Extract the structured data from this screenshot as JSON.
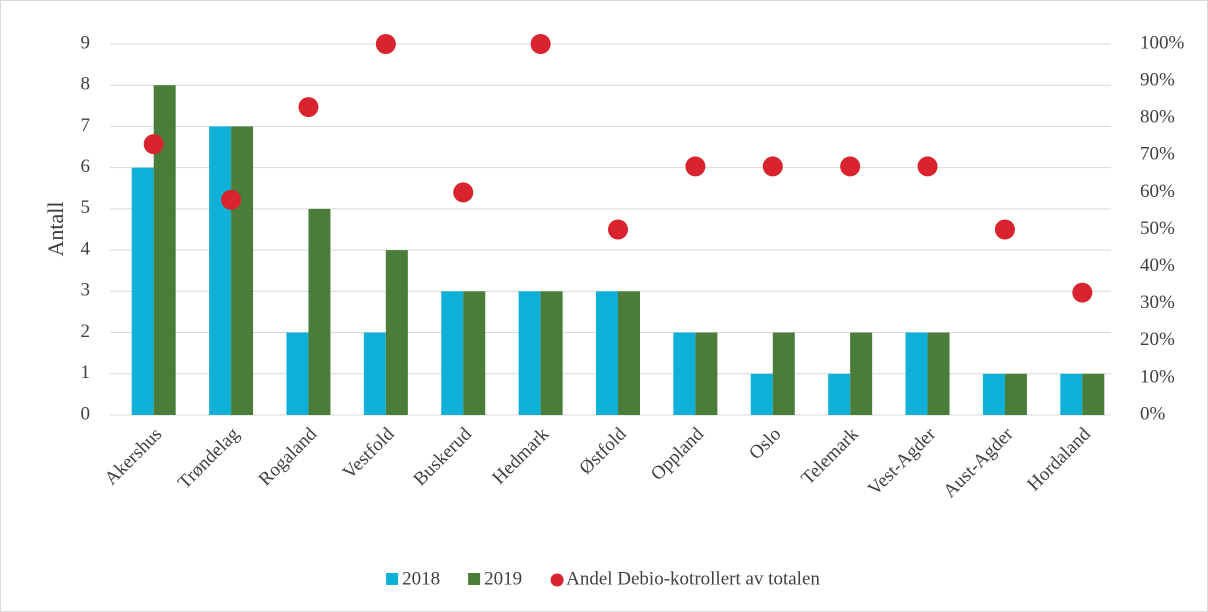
{
  "chart_data": {
    "type": "bar",
    "categories": [
      "Akershus",
      "Trøndelag",
      "Rogaland",
      "Vestfold",
      "Buskerud",
      "Hedmark",
      "Østfold",
      "Oppland",
      "Oslo",
      "Telemark",
      "Vest-Agder",
      "Aust-Agder",
      "Hordaland"
    ],
    "series": [
      {
        "name": "2018",
        "color": "#0eb0d7",
        "values": [
          6,
          7,
          2,
          2,
          3,
          3,
          3,
          2,
          1,
          1,
          2,
          1,
          1
        ]
      },
      {
        "name": "2019",
        "color": "#4a7c3a",
        "values": [
          8,
          7,
          5,
          4,
          3,
          3,
          3,
          2,
          2,
          2,
          2,
          1,
          1
        ]
      },
      {
        "name": "Andel Debio-kotrollert av totalen",
        "color": "#d9232e",
        "type": "scatter",
        "axis": "y2",
        "values": [
          73,
          58,
          83,
          100,
          60,
          100,
          50,
          67,
          67,
          67,
          67,
          50,
          33
        ]
      }
    ],
    "ylabel": "Antall",
    "ylim": [
      0,
      9
    ],
    "yticks": [
      0,
      1,
      2,
      3,
      4,
      5,
      6,
      7,
      8,
      9
    ],
    "y2lim": [
      0,
      100
    ],
    "y2ticks": [
      {
        "value": 0,
        "label": "0%"
      },
      {
        "value": 10,
        "label": "10%"
      },
      {
        "value": 20,
        "label": "20%"
      },
      {
        "value": 30,
        "label": "30%"
      },
      {
        "value": 40,
        "label": "40%"
      },
      {
        "value": 50,
        "label": "50%"
      },
      {
        "value": 60,
        "label": "60%"
      },
      {
        "value": 70,
        "label": "70%"
      },
      {
        "value": 80,
        "label": "80%"
      },
      {
        "value": 90,
        "label": "90%"
      },
      {
        "value": 100,
        "label": "100%"
      }
    ],
    "grid": true,
    "legend": "bottom"
  }
}
